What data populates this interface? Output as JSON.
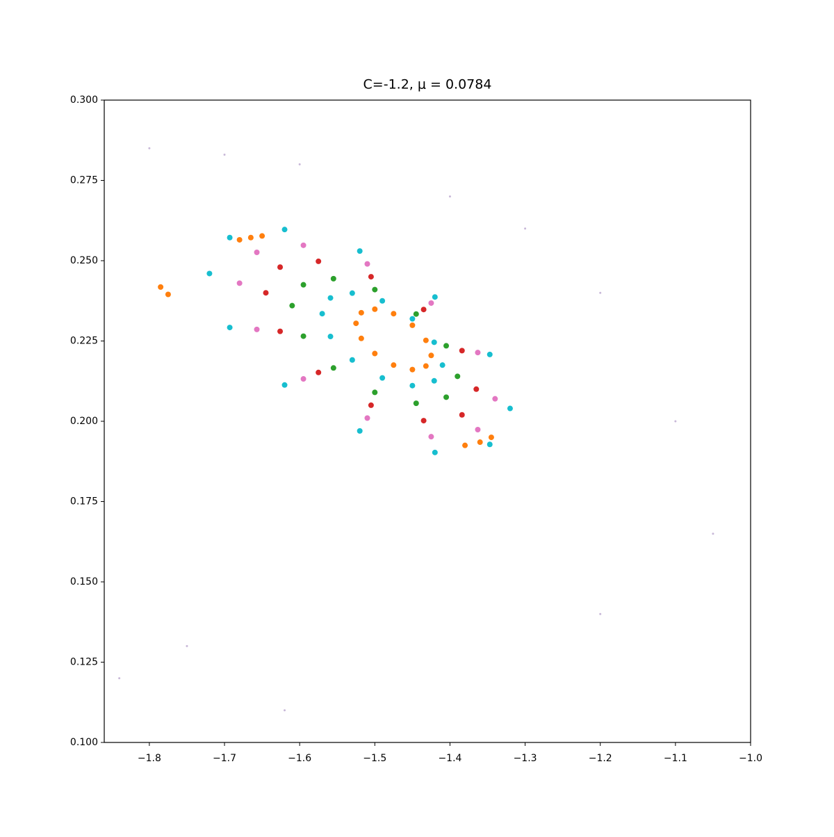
{
  "chart_data": {
    "type": "scatter",
    "title": "C=-1.2, μ = 0.0784",
    "xlim": [
      -1.86,
      -1.0
    ],
    "ylim": [
      0.1,
      0.3
    ],
    "xticks": [
      {
        "value": -1.8,
        "label": "−1.8"
      },
      {
        "value": -1.7,
        "label": "−1.7"
      },
      {
        "value": -1.6,
        "label": "−1.6"
      },
      {
        "value": -1.5,
        "label": "−1.5"
      },
      {
        "value": -1.4,
        "label": "−1.4"
      },
      {
        "value": -1.3,
        "label": "−1.3"
      },
      {
        "value": -1.2,
        "label": "−1.2"
      },
      {
        "value": -1.1,
        "label": "−1.1"
      },
      {
        "value": -1.0,
        "label": "−1.0"
      }
    ],
    "yticks": [
      {
        "value": 0.1,
        "label": "0.100"
      },
      0.125,
      {
        "value": 0.15,
        "label": "0.150"
      },
      0.175,
      {
        "value": 0.2,
        "label": "0.200"
      },
      0.225,
      {
        "value": 0.25,
        "label": "0.250"
      },
      0.275,
      {
        "value": 0.3,
        "label": "0.300"
      }
    ],
    "series": [
      {
        "color": "#c8b8d8",
        "x": [
          -1.8,
          -1.7,
          -1.6,
          -1.4,
          -1.3,
          -1.2,
          -1.1,
          -1.75,
          -1.2,
          -1.05,
          -1.84,
          -1.62
        ],
        "y": [
          0.285,
          0.283,
          0.28,
          0.27,
          0.26,
          0.24,
          0.2,
          0.13,
          0.14,
          0.165,
          0.12,
          0.11
        ]
      },
      {
        "color": "#17becf",
        "x": [
          -1.32,
          -1.347,
          -1.42,
          -1.52,
          -1.62,
          -1.693,
          -1.72,
          -1.693,
          -1.62,
          -1.52,
          -1.42,
          -1.347
        ],
        "y": [
          0.204,
          0.2208,
          0.2387,
          0.253,
          0.2597,
          0.2572,
          0.246,
          0.2292,
          0.2113,
          0.197,
          0.1903,
          0.1928
        ]
      },
      {
        "color": "#e377c2",
        "x": [
          -1.34,
          -1.363,
          -1.425,
          -1.51,
          -1.595,
          -1.657,
          -1.68,
          -1.657,
          -1.595,
          -1.51,
          -1.425,
          -1.363
        ],
        "y": [
          0.207,
          0.2214,
          0.2368,
          0.249,
          0.2548,
          0.2526,
          0.243,
          0.2286,
          0.2132,
          0.201,
          0.1952,
          0.1974
        ]
      },
      {
        "color": "#d62728",
        "x": [
          -1.365,
          -1.384,
          -1.435,
          -1.505,
          -1.575,
          -1.626,
          -1.645,
          -1.626,
          -1.575,
          -1.505,
          -1.435,
          -1.384
        ],
        "y": [
          0.21,
          0.222,
          0.2348,
          0.245,
          0.2498,
          0.248,
          0.24,
          0.228,
          0.2152,
          0.205,
          0.2002,
          0.202
        ]
      },
      {
        "color": "#2ca02c",
        "x": [
          -1.39,
          -1.405,
          -1.445,
          -1.5,
          -1.555,
          -1.595,
          -1.61,
          -1.595,
          -1.555,
          -1.5,
          -1.445,
          -1.405
        ],
        "y": [
          0.214,
          0.2235,
          0.2334,
          0.241,
          0.2444,
          0.2425,
          0.236,
          0.2265,
          0.2166,
          0.209,
          0.2056,
          0.2075
        ]
      },
      {
        "color": "#17becf",
        "x": [
          -1.41,
          -1.421,
          -1.45,
          -1.49,
          -1.53,
          -1.559,
          -1.57,
          -1.559,
          -1.53,
          -1.49,
          -1.45,
          -1.421
        ],
        "y": [
          0.2175,
          0.2246,
          0.2319,
          0.2375,
          0.2399,
          0.2384,
          0.2335,
          0.2264,
          0.2191,
          0.2135,
          0.2111,
          0.2126
        ]
      },
      {
        "color": "#ff7f0e",
        "x": [
          -1.425,
          -1.432,
          -1.45,
          -1.475,
          -1.5,
          -1.518,
          -1.525,
          -1.518,
          -1.5,
          -1.475,
          -1.45,
          -1.432
        ],
        "y": [
          0.2205,
          0.2252,
          0.2299,
          0.2335,
          0.2349,
          0.2338,
          0.2305,
          0.2258,
          0.2211,
          0.2175,
          0.2161,
          0.2172
        ]
      },
      {
        "color": "#ff7f0e",
        "x": [
          -1.68,
          -1.665,
          -1.65,
          -1.785,
          -1.775,
          -1.38,
          -1.36,
          -1.345
        ],
        "y": [
          0.2565,
          0.2572,
          0.2577,
          0.2418,
          0.2395,
          0.1925,
          0.1935,
          0.195
        ]
      }
    ]
  }
}
